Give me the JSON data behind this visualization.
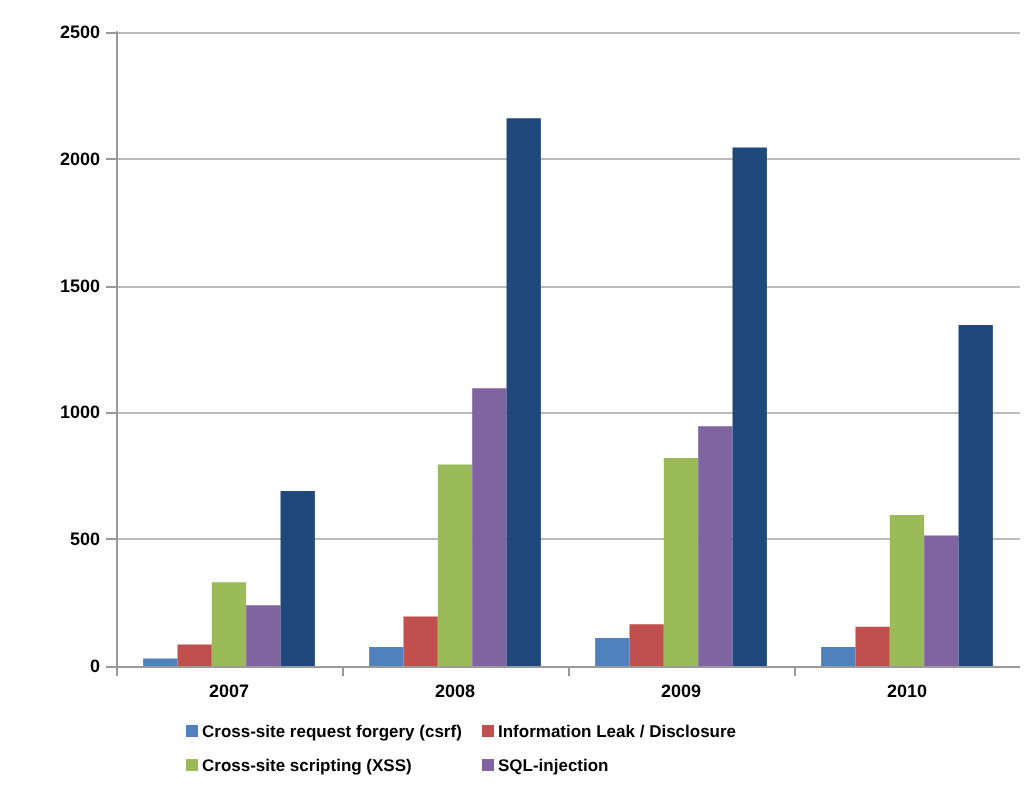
{
  "chart_data": {
    "type": "bar",
    "categories": [
      "2007",
      "2008",
      "2009",
      "2010"
    ],
    "series": [
      {
        "name": "Cross-site request forgery (csrf)",
        "color": "#4f81bd",
        "values": [
          30,
          75,
          110,
          75
        ]
      },
      {
        "name": "Information Leak / Disclosure",
        "color": "#c0504d",
        "values": [
          85,
          195,
          165,
          155
        ]
      },
      {
        "name": "Cross-site scripting (XSS)",
        "color": "#9bbb59",
        "values": [
          330,
          795,
          820,
          595
        ]
      },
      {
        "name": "SQL-injection",
        "color": "#8064a2",
        "values": [
          240,
          1095,
          945,
          515
        ]
      },
      {
        "color": "#1f497d",
        "values": [
          690,
          2160,
          2045,
          1345
        ]
      }
    ],
    "ylim": [
      0,
      2500
    ],
    "yticks": [
      0,
      500,
      1000,
      1500,
      2000,
      2500
    ],
    "grid": "y",
    "legend": "bottom"
  }
}
